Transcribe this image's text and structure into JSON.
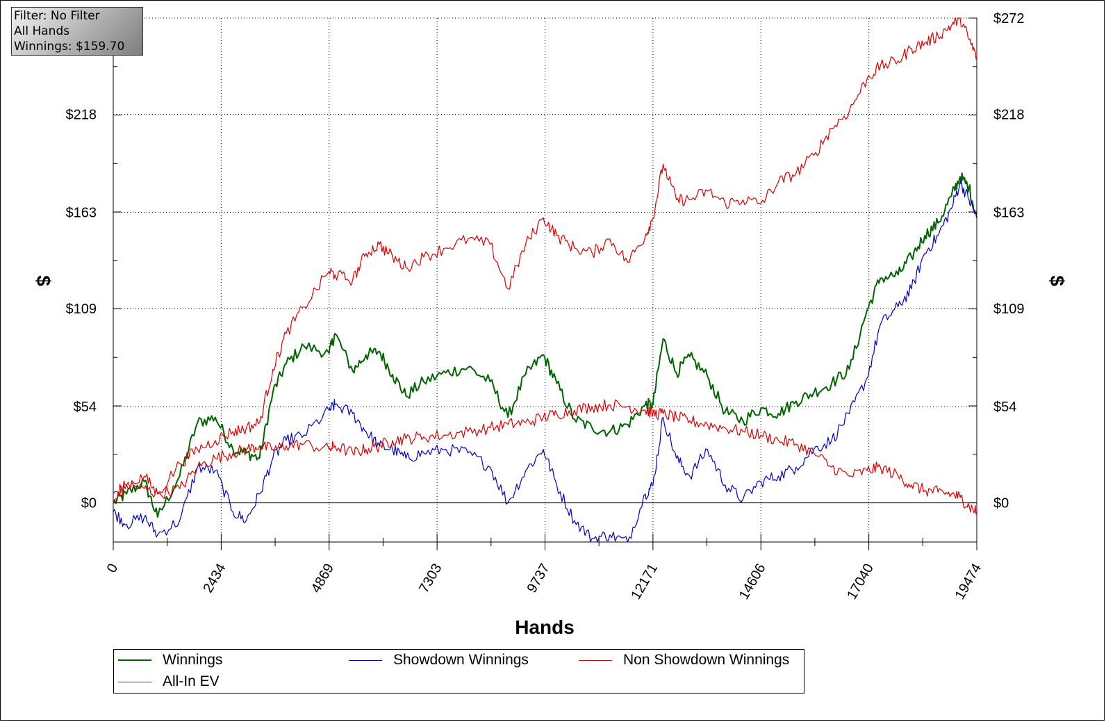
{
  "info": {
    "filter": "Filter: No Filter",
    "hands": "All Hands",
    "winnings": "Winnings: $159.70"
  },
  "chart_data": {
    "type": "line",
    "xlabel": "Hands",
    "ylabel": "$",
    "xlim": [
      0,
      19474
    ],
    "ylim": [
      -22,
      272
    ],
    "x_ticks": [
      "0",
      "2434",
      "4869",
      "7303",
      "9737",
      "12171",
      "14606",
      "17040",
      "19474"
    ],
    "y_ticks": [
      "$0",
      "$54",
      "$109",
      "$163",
      "$218",
      "$272"
    ],
    "y_tick_values": [
      0,
      54,
      109,
      163,
      218,
      272
    ],
    "grid": true,
    "legend_placement": "bottom",
    "series": [
      {
        "name": "Winnings",
        "color": "#006400",
        "x": [
          0,
          300,
          700,
          1000,
          1500,
          1900,
          2300,
          2700,
          3000,
          3300,
          3600,
          3900,
          4300,
          4869,
          5000,
          5400,
          5700,
          6000,
          6300,
          6600,
          7000,
          7500,
          8000,
          8500,
          8900,
          9300,
          9700,
          10000,
          10400,
          10800,
          11200,
          11600,
          12000,
          12171,
          12400,
          12700,
          13000,
          13400,
          13800,
          14200,
          14606,
          15000,
          15400,
          15800,
          16200,
          16600,
          17000,
          17300,
          17700,
          18000,
          18300,
          18600,
          18900,
          19100,
          19300,
          19474
        ],
        "y": [
          0,
          5,
          12,
          -8,
          15,
          45,
          48,
          30,
          28,
          25,
          62,
          78,
          88,
          84,
          95,
          74,
          83,
          85,
          72,
          60,
          68,
          73,
          76,
          68,
          48,
          72,
          83,
          67,
          47,
          42,
          40,
          44,
          55,
          55,
          92,
          73,
          82,
          71,
          51,
          46,
          53,
          50,
          57,
          62,
          67,
          75,
          108,
          126,
          128,
          138,
          150,
          157,
          172,
          183,
          177,
          160
        ]
      },
      {
        "name": "Showdown Winnings",
        "color": "#0000cc",
        "x": [
          0,
          300,
          700,
          1000,
          1500,
          1900,
          2300,
          2700,
          3000,
          3300,
          3600,
          3900,
          4300,
          4869,
          5000,
          5400,
          5700,
          6000,
          6300,
          6600,
          7000,
          7500,
          8000,
          8500,
          8900,
          9300,
          9700,
          10000,
          10400,
          10800,
          11200,
          11600,
          12000,
          12171,
          12400,
          12700,
          13000,
          13400,
          13800,
          14200,
          14606,
          15000,
          15400,
          15800,
          16200,
          16600,
          17000,
          17300,
          17700,
          18000,
          18300,
          18600,
          18900,
          19100,
          19300,
          19474
        ],
        "y": [
          -5,
          -12,
          -8,
          -18,
          -10,
          20,
          18,
          -5,
          -10,
          5,
          25,
          35,
          38,
          52,
          55,
          50,
          40,
          32,
          30,
          25,
          28,
          30,
          28,
          20,
          0,
          18,
          30,
          10,
          -10,
          -20,
          -18,
          -22,
          5,
          10,
          48,
          25,
          15,
          30,
          10,
          2,
          12,
          15,
          20,
          30,
          35,
          50,
          70,
          100,
          110,
          120,
          140,
          150,
          165,
          180,
          170,
          160
        ]
      },
      {
        "name": "Non Showdown Winnings",
        "color": "#dd0000",
        "x": [
          0,
          300,
          700,
          1000,
          1500,
          1900,
          2300,
          2700,
          3000,
          3300,
          3600,
          3900,
          4300,
          4869,
          5000,
          5400,
          5700,
          6000,
          6300,
          6600,
          7000,
          7500,
          8000,
          8500,
          8900,
          9300,
          9700,
          10000,
          10400,
          10800,
          11200,
          11600,
          12000,
          12171,
          12400,
          12700,
          13000,
          13400,
          13800,
          14200,
          14606,
          15000,
          15400,
          15800,
          16200,
          16600,
          17000,
          17300,
          17700,
          18000,
          18300,
          18600,
          18900,
          19100,
          19300,
          19474
        ],
        "y": [
          5,
          10,
          8,
          5,
          8,
          20,
          25,
          28,
          30,
          32,
          30,
          32,
          33,
          30,
          32,
          28,
          30,
          32,
          35,
          36,
          37,
          38,
          40,
          42,
          44,
          45,
          48,
          50,
          52,
          54,
          55,
          54,
          52,
          50,
          50,
          48,
          46,
          44,
          42,
          40,
          38,
          35,
          33,
          28,
          20,
          15,
          18,
          20,
          15,
          10,
          7,
          6,
          5,
          3,
          -2,
          -5
        ]
      },
      {
        "name": "All-In EV",
        "color": "#dd0000",
        "x": [
          0,
          300,
          700,
          1000,
          1500,
          1900,
          2300,
          2700,
          3000,
          3300,
          3600,
          3900,
          4300,
          4869,
          5000,
          5400,
          5700,
          6000,
          6300,
          6600,
          7000,
          7500,
          8000,
          8500,
          8900,
          9300,
          9700,
          10000,
          10400,
          10800,
          11200,
          11600,
          12000,
          12171,
          12400,
          12700,
          13000,
          13400,
          13800,
          14200,
          14606,
          15000,
          15400,
          15800,
          16200,
          16600,
          17000,
          17300,
          17700,
          18000,
          18300,
          18600,
          18900,
          19100,
          19300,
          19474
        ],
        "y": [
          0,
          10,
          15,
          5,
          22,
          30,
          35,
          40,
          42,
          45,
          75,
          95,
          110,
          130,
          128,
          125,
          140,
          145,
          138,
          132,
          138,
          143,
          148,
          145,
          120,
          145,
          160,
          150,
          143,
          140,
          148,
          135,
          150,
          160,
          190,
          170,
          170,
          175,
          168,
          170,
          168,
          180,
          185,
          195,
          210,
          220,
          238,
          245,
          248,
          255,
          258,
          262,
          268,
          272,
          260,
          250
        ]
      }
    ]
  },
  "legend": [
    {
      "label": "Winnings",
      "color": "#006400"
    },
    {
      "label": "Showdown Winnings",
      "color": "#0000cc"
    },
    {
      "label": "Non Showdown Winnings",
      "color": "#dd0000"
    },
    {
      "label": "All-In EV",
      "color": "#dd0000"
    }
  ]
}
